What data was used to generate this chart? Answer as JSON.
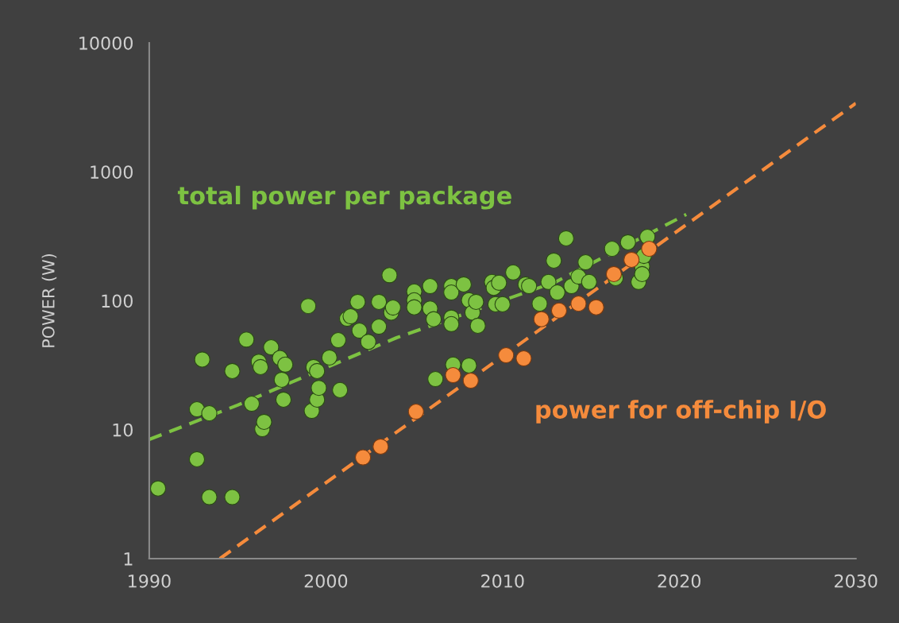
{
  "chart_data": {
    "type": "scatter",
    "ylabel": "POWER (W)",
    "log": "y",
    "xlim": [
      1990,
      2030
    ],
    "ylim": [
      1,
      10000
    ],
    "xticks": [
      1990,
      2000,
      2010,
      2020,
      2030
    ],
    "yticks": [
      1,
      10,
      100,
      1000,
      10000
    ],
    "grid": false,
    "legend": false,
    "series": [
      {
        "marker": "circle",
        "name": "total power per package",
        "color": "#7dc242",
        "x": [
          1990.5,
          1992.7,
          1992.7,
          1993.0,
          1993.4,
          1993.4,
          1994.7,
          1994.7,
          1995.5,
          1995.8,
          1996.2,
          1996.3,
          1996.4,
          1996.5,
          1996.9,
          1997.4,
          1997.5,
          1997.6,
          1997.7,
          1999.0,
          1999.3,
          1999.2,
          1999.5,
          1999.6,
          1999.5,
          2000.2,
          2000.7,
          2000.8,
          2001.2,
          2001.4,
          2001.8,
          2001.9,
          2002.4,
          2003.0,
          2003.0,
          2003.6,
          2003.7,
          2003.8,
          2005.0,
          2005.0,
          2005.0,
          2005.9,
          2005.9,
          2006.1,
          2007.1,
          2007.1,
          2007.1,
          2007.1,
          2007.2,
          2006.2,
          2007.8,
          2008.1,
          2008.3,
          2008.1,
          2008.5,
          2008.6,
          2009.4,
          2009.5,
          2009.6,
          2009.8,
          2010.0,
          2010.6,
          2011.3,
          2011.5,
          2012.1,
          2012.6,
          2012.9,
          2013.1,
          2013.6,
          2013.9,
          2014.3,
          2014.7,
          2014.9,
          2016.2,
          2016.4,
          2017.1,
          2017.7,
          2017.9,
          2017.9,
          2018.0,
          2018.2
        ],
        "values": [
          3.5,
          5.9,
          14.4,
          35,
          13.4,
          3.0,
          28.5,
          3.0,
          50,
          15.9,
          33.7,
          30.6,
          10.1,
          11.5,
          43.6,
          36,
          24.4,
          17.1,
          32,
          91,
          30.6,
          14,
          17.1,
          21.1,
          28.5,
          36.3,
          49.5,
          20.3,
          72.6,
          75.8,
          98,
          58.7,
          48,
          63,
          98,
          158,
          81,
          88.6,
          118,
          101,
          89,
          130,
          87,
          72,
          130,
          116,
          74,
          66,
          32,
          24.7,
          134,
          101,
          81,
          31.5,
          98,
          64,
          140,
          126,
          94,
          138,
          94,
          166,
          134,
          130,
          95,
          140,
          205,
          116,
          305,
          130,
          154,
          199,
          140,
          253,
          150,
          284,
          140,
          185,
          161,
          223,
          313
        ]
      },
      {
        "marker": "circle",
        "name": "power for off-chip I/O",
        "color": "#f58b3c",
        "x": [
          2002.1,
          2003.1,
          2005.1,
          2007.2,
          2008.2,
          2010.2,
          2011.2,
          2012.2,
          2013.2,
          2014.3,
          2015.3,
          2016.3,
          2017.3,
          2018.3
        ],
        "values": [
          6.1,
          7.4,
          13.8,
          26.5,
          24,
          37.8,
          35.7,
          72,
          84,
          95,
          89,
          161,
          208,
          253
        ]
      },
      {
        "type": "line",
        "line_style": "dashed",
        "color": "#7dc242",
        "x": [
          1990,
          1995.0,
          2004.0,
          2013.0,
          2020.4
        ],
        "values": [
          8.4,
          15.5,
          51.7,
          140,
          467
        ]
      },
      {
        "type": "line",
        "line_style": "dashed",
        "color": "#f58b3c",
        "x": [
          1994.0,
          2030
        ],
        "values": [
          1,
          3400
        ]
      }
    ]
  }
}
